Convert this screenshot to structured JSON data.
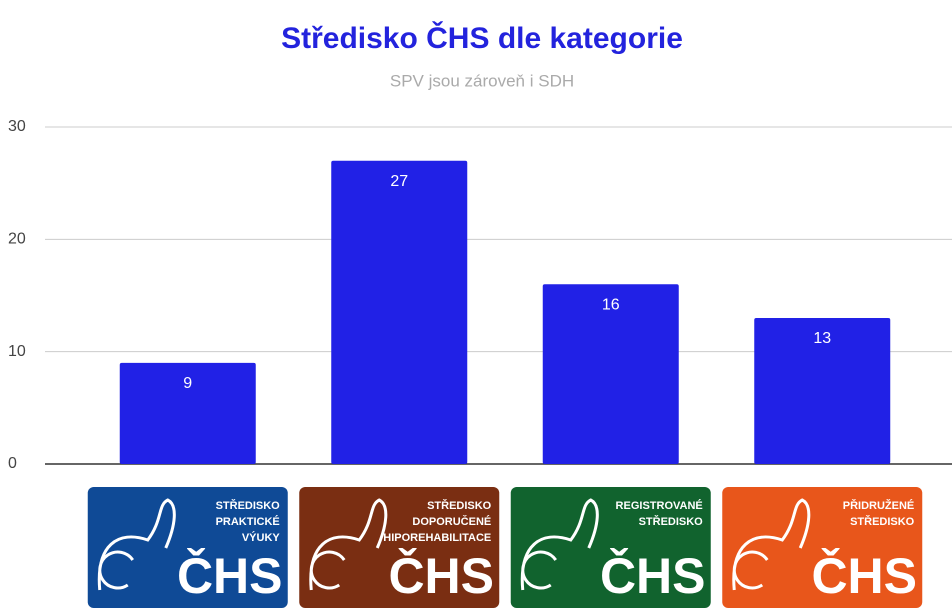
{
  "chart_data": {
    "type": "bar",
    "title": "Středisko ČHS dle kategorie",
    "subtitle": "SPV jsou zároveň i SDH",
    "categories": [
      [
        "STŘEDISKO",
        "PRAKTICKÉ",
        "VÝUKY"
      ],
      [
        "STŘEDISKO",
        "DOPORUČENÉ",
        "HIPOREHABILITACE"
      ],
      [
        "REGISTROVANÉ",
        "STŘEDISKO"
      ],
      [
        "PŘIDRUŽENÉ",
        "STŘEDISKO"
      ]
    ],
    "category_logo_text": "ČHS",
    "category_colors": [
      "#0f4a96",
      "#7a2e12",
      "#11632e",
      "#e8561b"
    ],
    "values": [
      9,
      27,
      16,
      13
    ],
    "color": "#2121e6",
    "ylim": [
      0,
      30
    ],
    "yticks": [
      0,
      10,
      20,
      30
    ],
    "grid": true
  }
}
